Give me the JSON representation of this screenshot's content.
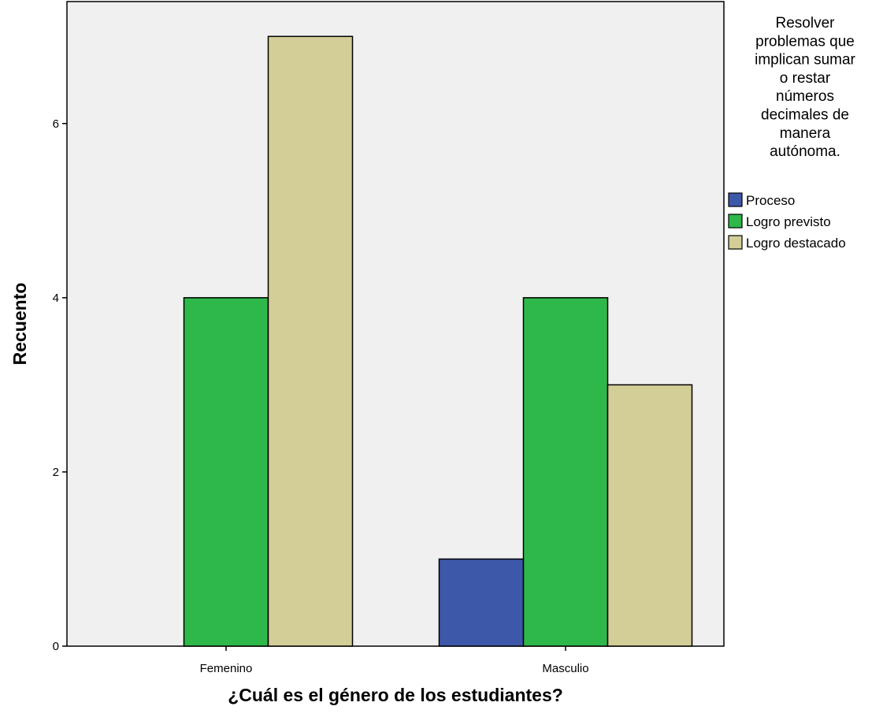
{
  "chart_data": {
    "type": "bar",
    "categories": [
      "Femenino",
      "Masculio"
    ],
    "series": [
      {
        "name": "Proceso",
        "values": [
          0,
          1
        ],
        "color": "#3d58a9"
      },
      {
        "name": "Logro previsto",
        "values": [
          4,
          4
        ],
        "color": "#2fb84a"
      },
      {
        "name": "Logro destacado",
        "values": [
          7,
          3
        ],
        "color": "#d3ce97"
      }
    ],
    "xlabel": "¿Cuál es el género de los estudiantes?",
    "ylabel": "Recuento",
    "ylim": [
      0,
      7.4
    ],
    "yticks": [
      0,
      2,
      4,
      6
    ],
    "plot_background": "#f0f0f0",
    "grid": false,
    "legend": {
      "position": "right",
      "title_lines": [
        "Resolver",
        "problemas que",
        "implican sumar",
        "o restar",
        "números",
        "decimales de",
        "manera",
        "autónoma."
      ]
    }
  }
}
